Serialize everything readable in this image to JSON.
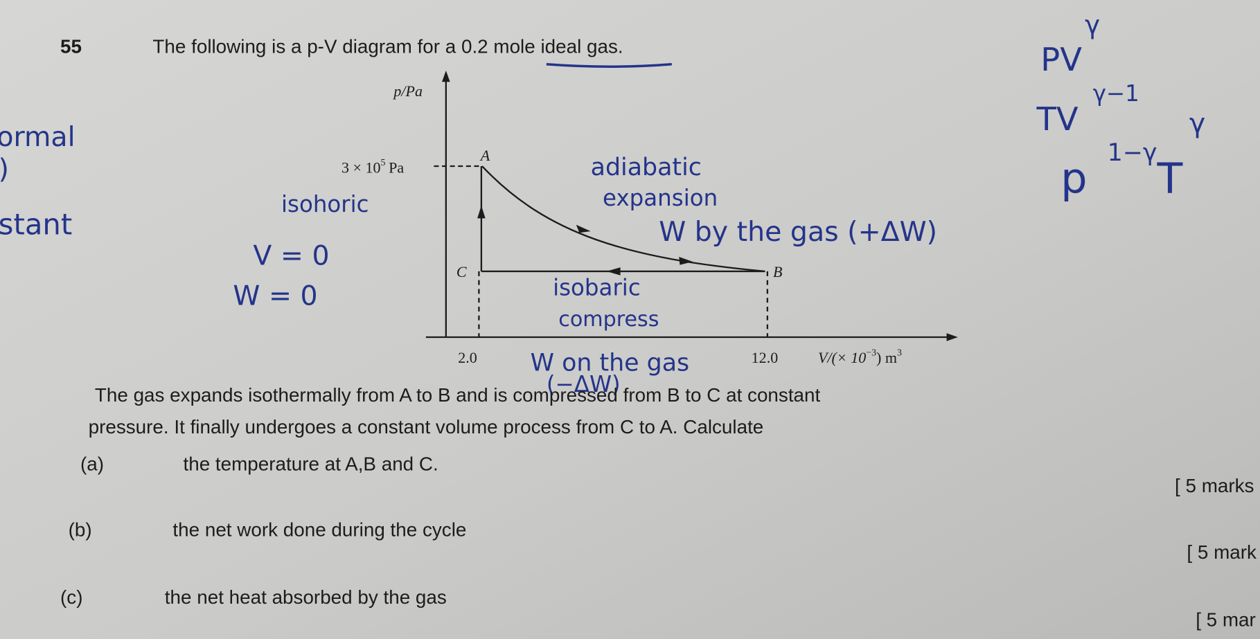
{
  "question": {
    "number": "55",
    "stem": "The following is a p-V diagram for  a 0.2 mole ideal gas.",
    "body_lines": [
      "The gas expands isothermally from A to B  and is compressed from B to C at constant",
      "pressure. It finally undergoes a constant volume process from C to A. Calculate"
    ],
    "parts": [
      {
        "label": "(a)",
        "text": "the temperature at A,B and C.",
        "marks": "[ 5 marks"
      },
      {
        "label": "(b)",
        "text": "the net work done during the cycle",
        "marks": "[ 5 mark"
      },
      {
        "label": "(c)",
        "text": "the net heat absorbed by the gas",
        "marks": "[ 5 mar"
      }
    ]
  },
  "diagram": {
    "y_axis_label": "p/Pa",
    "pressure_label": {
      "base": "3 × 10",
      "exp": "5",
      "unit": "Pa"
    },
    "points": [
      "A",
      "B",
      "C"
    ],
    "x_ticks": [
      "2.0",
      "12.0"
    ],
    "x_axis_label": {
      "base": "V/(× 10",
      "exp": "−3",
      "mid": ") m",
      "exp2": "3"
    }
  },
  "handwriting": {
    "left_margin": [
      "ormal",
      ")",
      "stant"
    ],
    "isochoric": [
      "isohoric",
      "V = 0",
      "W = 0"
    ],
    "adiabatic": [
      "adiabatic",
      "expansion",
      "W by the gas (+ΔW)"
    ],
    "isobaric": [
      "isobaric",
      "compress",
      "W on the gas",
      "(−ΔW)"
    ],
    "formulas": {
      "pv": "PV",
      "pv_exp": "γ",
      "tv": "TV",
      "tv_exp": "γ−1",
      "p": "p",
      "p_exp": "1−γ",
      "t": "T",
      "t_exp": "γ"
    }
  }
}
